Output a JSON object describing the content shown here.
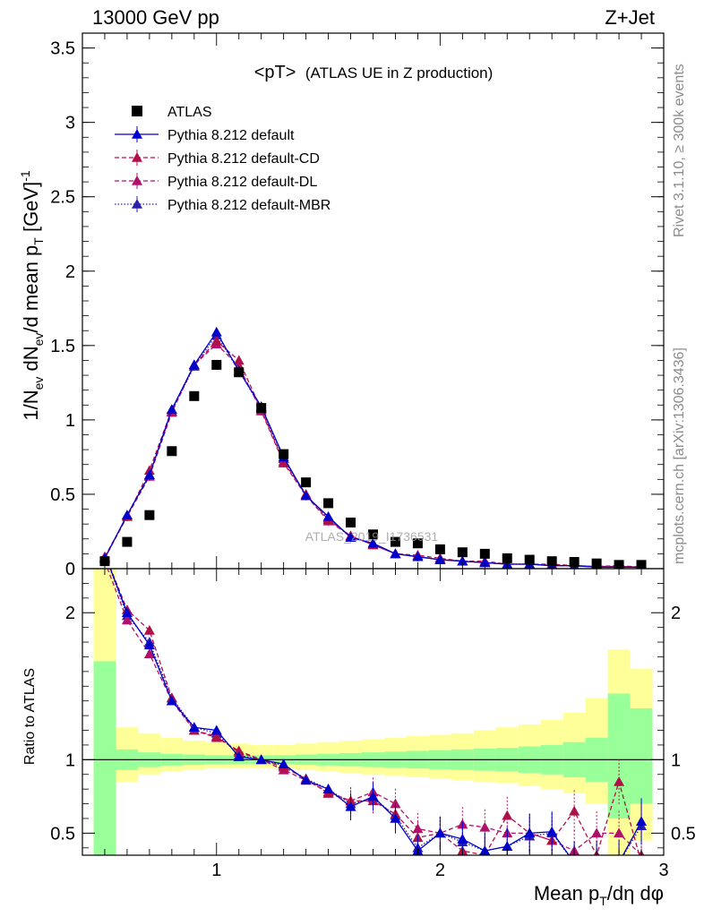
{
  "header": {
    "left": "13000 GeV pp",
    "right": "Z+Jet"
  },
  "side_text": {
    "top": "Rivet 3.1.10, ≥ 300k events",
    "bottom": "mcplots.cern.ch [arXiv:1306.3436]"
  },
  "watermark": "ATLAS_2019_I1736531",
  "chart_data": {
    "type": "scatter",
    "title": "<pT> (ATLAS UE in Z production)",
    "title_main": "<pT>",
    "title_sub": "(ATLAS UE in Z production)",
    "xlabel": "Mean p_T/dη dφ",
    "xlabel_parts": {
      "a": "Mean p",
      "sub": "T",
      "b": "/dη dφ"
    },
    "ylabel": "1/N_ev dN_ev/d mean p_T [GeV]^-1",
    "ylabel_parts": {
      "a": "1/N",
      "s1": "ev",
      "b": " dN",
      "s2": "ev",
      "c": "/d mean p",
      "s3": "T",
      "d": " [GeV]",
      "sup": "-1"
    },
    "ratio_ylabel": "Ratio to ATLAS",
    "xlim": [
      0.4,
      3.0
    ],
    "ylim": [
      0,
      3.6
    ],
    "ratio_ylim": [
      0.35,
      2.3
    ],
    "x_ticks": [
      {
        "v": 1,
        "label": "1"
      },
      {
        "v": 2,
        "label": "2"
      },
      {
        "v": 3,
        "label": "3"
      }
    ],
    "y_ticks": [
      {
        "v": 0,
        "label": "0"
      },
      {
        "v": 0.5,
        "label": "0.5"
      },
      {
        "v": 1,
        "label": "1"
      },
      {
        "v": 1.5,
        "label": "1.5"
      },
      {
        "v": 2,
        "label": "2"
      },
      {
        "v": 2.5,
        "label": "2.5"
      },
      {
        "v": 3,
        "label": "3"
      },
      {
        "v": 3.5,
        "label": "3.5"
      }
    ],
    "ratio_ticks": [
      {
        "v": 0.5,
        "label": "0.5"
      },
      {
        "v": 1,
        "label": "1"
      },
      {
        "v": 2,
        "label": "2"
      }
    ],
    "legend_position": "top-left",
    "x": [
      0.5,
      0.6,
      0.7,
      0.8,
      0.9,
      1.0,
      1.1,
      1.2,
      1.3,
      1.4,
      1.5,
      1.6,
      1.7,
      1.8,
      1.9,
      2.0,
      2.1,
      2.2,
      2.3,
      2.4,
      2.5,
      2.6,
      2.7,
      2.8,
      2.9
    ],
    "band_edges": [
      0.45,
      0.55,
      0.65,
      0.75,
      0.85,
      0.95,
      1.05,
      1.15,
      1.25,
      1.35,
      1.45,
      1.55,
      1.65,
      1.75,
      1.85,
      1.95,
      2.05,
      2.15,
      2.25,
      2.35,
      2.45,
      2.55,
      2.65,
      2.75,
      2.85,
      2.95
    ],
    "band_green": [
      [
        0.35,
        1.67
      ],
      [
        0.93,
        1.07
      ],
      [
        0.95,
        1.05
      ],
      [
        0.96,
        1.04
      ],
      [
        0.965,
        1.035
      ],
      [
        0.97,
        1.03
      ],
      [
        0.97,
        1.03
      ],
      [
        0.97,
        1.03
      ],
      [
        0.97,
        1.03
      ],
      [
        0.965,
        1.035
      ],
      [
        0.96,
        1.04
      ],
      [
        0.955,
        1.045
      ],
      [
        0.95,
        1.05
      ],
      [
        0.945,
        1.055
      ],
      [
        0.94,
        1.06
      ],
      [
        0.935,
        1.065
      ],
      [
        0.93,
        1.07
      ],
      [
        0.925,
        1.075
      ],
      [
        0.92,
        1.08
      ],
      [
        0.91,
        1.09
      ],
      [
        0.9,
        1.1
      ],
      [
        0.88,
        1.12
      ],
      [
        0.85,
        1.15
      ],
      [
        0.6,
        1.45
      ],
      [
        0.7,
        1.35
      ]
    ],
    "band_yellow": [
      [
        0.35,
        2.3
      ],
      [
        0.85,
        1.22
      ],
      [
        0.9,
        1.18
      ],
      [
        0.92,
        1.15
      ],
      [
        0.93,
        1.13
      ],
      [
        0.94,
        1.12
      ],
      [
        0.94,
        1.11
      ],
      [
        0.94,
        1.1
      ],
      [
        0.94,
        1.1
      ],
      [
        0.93,
        1.11
      ],
      [
        0.92,
        1.12
      ],
      [
        0.91,
        1.13
      ],
      [
        0.9,
        1.14
      ],
      [
        0.89,
        1.15
      ],
      [
        0.88,
        1.16
      ],
      [
        0.87,
        1.17
      ],
      [
        0.86,
        1.18
      ],
      [
        0.85,
        1.2
      ],
      [
        0.84,
        1.22
      ],
      [
        0.82,
        1.24
      ],
      [
        0.8,
        1.27
      ],
      [
        0.77,
        1.32
      ],
      [
        0.7,
        1.42
      ],
      [
        0.35,
        1.75
      ],
      [
        0.45,
        1.62
      ]
    ],
    "series": [
      {
        "name": "ATLAS",
        "color": "#000000",
        "marker": "square",
        "line": "none",
        "values": [
          0.05,
          0.18,
          0.36,
          0.79,
          1.16,
          1.37,
          1.32,
          1.08,
          0.77,
          0.58,
          0.44,
          0.31,
          0.23,
          0.18,
          0.17,
          0.13,
          0.11,
          0.1,
          0.07,
          0.06,
          0.05,
          0.045,
          0.035,
          0.025,
          0.025
        ]
      },
      {
        "name": "Pythia 8.212 default",
        "color": "#0000cc",
        "marker": "triangle",
        "line": "solid",
        "values": [
          0.07,
          0.36,
          0.63,
          1.07,
          1.37,
          1.59,
          1.33,
          1.09,
          0.75,
          0.49,
          0.35,
          0.21,
          0.17,
          0.1,
          0.08,
          0.06,
          0.05,
          0.04,
          0.03,
          0.03,
          0.02,
          0.02,
          0.01,
          0.01,
          0.01
        ],
        "ratio": [
          2.4,
          2.0,
          1.78,
          1.4,
          1.22,
          1.2,
          1.02,
          1.0,
          0.97,
          0.86,
          0.8,
          0.68,
          0.75,
          0.6,
          0.38,
          0.5,
          0.46,
          0.38,
          0.41,
          0.5,
          0.51,
          0.3,
          0.3,
          0.3,
          0.58
        ]
      },
      {
        "name": "Pythia 8.212 default-CD",
        "color": "#b0104a",
        "marker": "triangle",
        "line": "dashed",
        "values": [
          0.08,
          0.35,
          0.66,
          1.07,
          1.37,
          1.53,
          1.4,
          1.07,
          0.72,
          0.5,
          0.33,
          0.22,
          0.16,
          0.1,
          0.09,
          0.07,
          0.05,
          0.05,
          0.03,
          0.03,
          0.03,
          0.02,
          0.015,
          0.02,
          0.01
        ],
        "ratio": [
          2.4,
          2.02,
          1.88,
          1.42,
          1.2,
          1.15,
          1.06,
          1.0,
          0.95,
          0.87,
          0.77,
          0.72,
          0.72,
          0.63,
          0.47,
          0.5,
          0.38,
          0.35,
          0.62,
          0.5,
          0.45,
          0.65,
          0.35,
          0.85,
          0.3
        ]
      },
      {
        "name": "Pythia 8.212 default-DL",
        "color": "#b0106a",
        "marker": "triangle",
        "line": "dashed",
        "values": [
          0.07,
          0.35,
          0.62,
          1.05,
          1.37,
          1.51,
          1.36,
          1.06,
          0.71,
          0.49,
          0.32,
          0.22,
          0.16,
          0.1,
          0.08,
          0.06,
          0.05,
          0.04,
          0.03,
          0.03,
          0.02,
          0.02,
          0.015,
          0.015,
          0.01
        ],
        "ratio": [
          2.35,
          1.95,
          1.72,
          1.4,
          1.2,
          1.16,
          1.05,
          1.0,
          0.93,
          0.86,
          0.78,
          0.72,
          0.78,
          0.7,
          0.53,
          0.5,
          0.56,
          0.54,
          0.5,
          0.5,
          0.45,
          0.38,
          0.5,
          0.5,
          0.35
        ]
      },
      {
        "name": "Pythia 8.212 default-MBR",
        "color": "#2c1fb0",
        "marker": "triangle",
        "line": "dotted",
        "values": [
          0.07,
          0.36,
          0.63,
          1.06,
          1.36,
          1.57,
          1.33,
          1.08,
          0.74,
          0.49,
          0.34,
          0.21,
          0.17,
          0.1,
          0.08,
          0.06,
          0.05,
          0.04,
          0.03,
          0.03,
          0.02,
          0.02,
          0.01,
          0.01,
          0.01
        ],
        "ratio": [
          2.4,
          1.98,
          1.8,
          1.42,
          1.22,
          1.18,
          1.03,
          1.0,
          0.96,
          0.87,
          0.8,
          0.7,
          0.74,
          0.62,
          0.4,
          0.5,
          0.44,
          0.38,
          0.41,
          0.48,
          0.5,
          0.3,
          0.3,
          0.3,
          0.55
        ]
      }
    ]
  }
}
